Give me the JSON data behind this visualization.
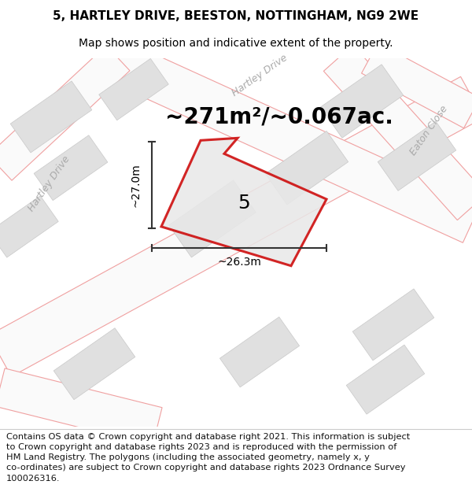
{
  "title_line1": "5, HARTLEY DRIVE, BEESTON, NOTTINGHAM, NG9 2WE",
  "title_line2": "Map shows position and indicative extent of the property.",
  "area_text": "~271m²/~0.067ac.",
  "dim_width": "~26.3m",
  "dim_height": "~27.0m",
  "property_number": "5",
  "footer_text": "Contains OS data © Crown copyright and database right 2021. This information is subject to Crown copyright and database rights 2023 and is reproduced with the permission of HM Land Registry. The polygons (including the associated geometry, namely x, y co-ordinates) are subject to Crown copyright and database rights 2023 Ordnance Survey 100026316.",
  "bg_color": "#ffffff",
  "road_outline_color": "#f0a0a0",
  "road_fill_color": "#ffffff",
  "building_color": "#e0e0e0",
  "building_edge": "#c8c8c8",
  "property_fill": "#e8e8e8",
  "property_edge": "#cc0000",
  "dim_line_color": "#333333",
  "text_color": "#000000",
  "street_label_color": "#aaaaaa",
  "title_fontsize": 11,
  "subtitle_fontsize": 10,
  "area_fontsize": 20,
  "dim_fontsize": 10,
  "number_fontsize": 18,
  "footer_fontsize": 8.2,
  "street_label_fontsize": 9
}
